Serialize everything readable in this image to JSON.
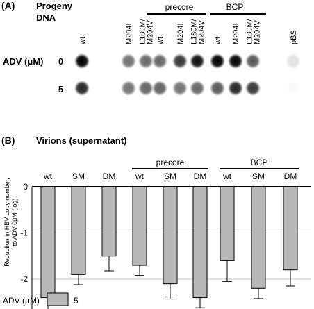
{
  "panel_a": {
    "label": "(A)",
    "title_line1": "Progeny",
    "title_line2": "DNA",
    "row_axis_label": "ADV (μM)",
    "row_values": [
      "0",
      "5"
    ],
    "group_labels": [
      "precore",
      "BCP"
    ],
    "lane_labels": [
      "wt",
      "M204I",
      "L180M/\nM204V",
      "wt",
      "M204I",
      "L180M/\nM204V",
      "wt",
      "M204I",
      "L180M/\nM204V",
      "pBS"
    ],
    "dot_intensity_row0": [
      1.0,
      0.55,
      0.58,
      0.6,
      0.78,
      0.95,
      1.0,
      0.98,
      0.65,
      0.12
    ],
    "dot_intensity_row1": [
      0.85,
      0.55,
      0.6,
      0.62,
      0.55,
      0.6,
      0.65,
      0.85,
      0.78,
      0.02
    ]
  },
  "panel_b": {
    "label": "(B)",
    "title": "Virions (supernatant)",
    "y_axis_label_line1": "Reduction in HBV copy number,",
    "y_axis_label_line2": "to ADV 0μM (log)",
    "y_ticks": [
      "0",
      "-1",
      "-2"
    ],
    "legend_title": "ADV (μM)",
    "legend_entry": "5",
    "bar_color": "#b8b8b8"
  },
  "chart_data": {
    "type": "bar",
    "categories": [
      "wt",
      "SM",
      "DM",
      "wt",
      "SM",
      "DM",
      "wt",
      "SM",
      "DM"
    ],
    "groups": [
      {
        "label": "",
        "categories": [
          "wt",
          "SM",
          "DM"
        ]
      },
      {
        "label": "precore",
        "categories": [
          "wt",
          "SM",
          "DM"
        ]
      },
      {
        "label": "BCP",
        "categories": [
          "wt",
          "SM",
          "DM"
        ]
      }
    ],
    "series": [
      {
        "name": "5",
        "values": [
          -2.4,
          -1.9,
          -1.5,
          -1.7,
          -2.1,
          -2.4,
          -1.6,
          -2.2,
          -1.8
        ],
        "error": [
          0.35,
          0.22,
          0.32,
          0.22,
          0.33,
          0.22,
          0.45,
          0.22,
          0.35
        ]
      }
    ],
    "ylim": [
      -2.7,
      0
    ],
    "yticks": [
      0,
      -1,
      -2
    ],
    "grid": true,
    "xlabel": "",
    "ylabel": "Reduction in HBV copy number, to ADV 0μM (log)",
    "legend_position": "bottom-left"
  }
}
